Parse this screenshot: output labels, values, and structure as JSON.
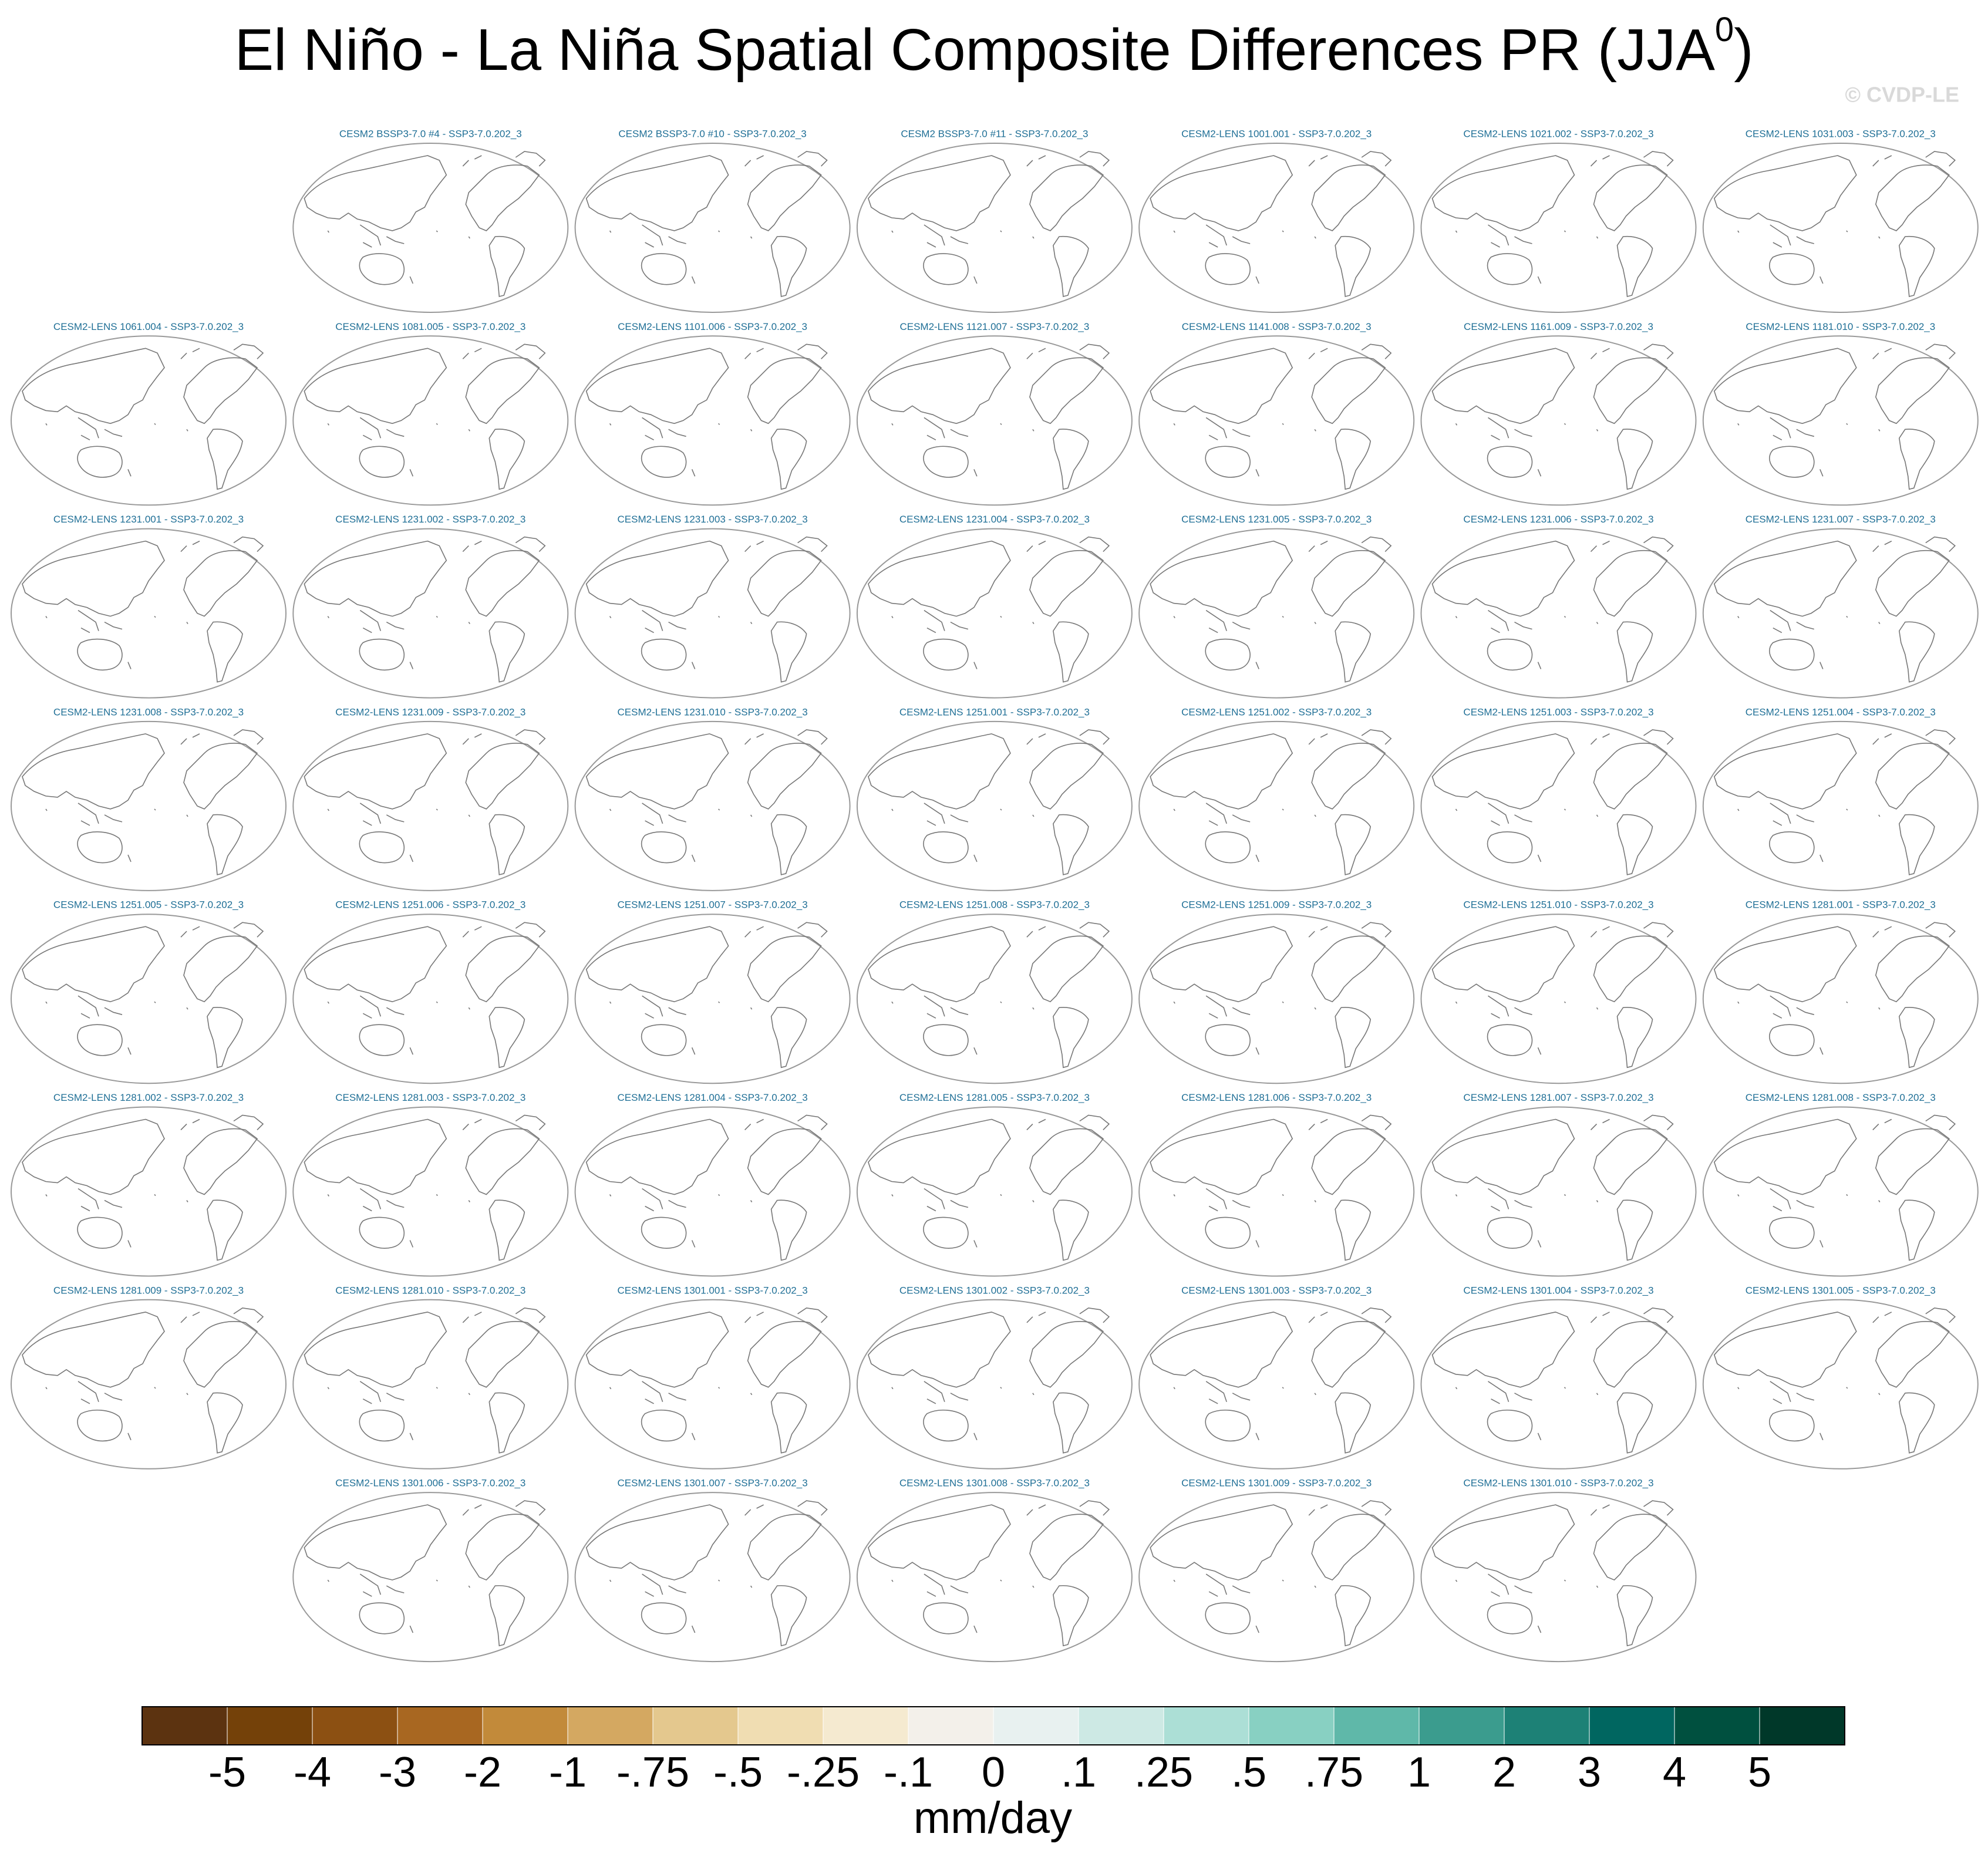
{
  "title": "El Niño - La Niña Spatial Composite Differences PR (JJA",
  "title_superscript": "0",
  "title_end": ")",
  "watermark": "© CVDP-LE",
  "panels": [
    [
      "CESM2 BSSP3-7.0 #4 - SSP3-7.0.202_3",
      "CESM2 BSSP3-7.0 #10 - SSP3-7.0.202_3",
      "CESM2 BSSP3-7.0 #11 - SSP3-7.0.202_3",
      "CESM2-LENS 1001.001 - SSP3-7.0.202_3",
      "CESM2-LENS 1021.002 - SSP3-7.0.202_3",
      "CESM2-LENS 1031.003 - SSP3-7.0.202_3"
    ],
    [
      "CESM2-LENS 1061.004 - SSP3-7.0.202_3",
      "CESM2-LENS 1081.005 - SSP3-7.0.202_3",
      "CESM2-LENS 1101.006 - SSP3-7.0.202_3",
      "CESM2-LENS 1121.007 - SSP3-7.0.202_3",
      "CESM2-LENS 1141.008 - SSP3-7.0.202_3",
      "CESM2-LENS 1161.009 - SSP3-7.0.202_3",
      "CESM2-LENS 1181.010 - SSP3-7.0.202_3"
    ],
    [
      "CESM2-LENS 1231.001 - SSP3-7.0.202_3",
      "CESM2-LENS 1231.002 - SSP3-7.0.202_3",
      "CESM2-LENS 1231.003 - SSP3-7.0.202_3",
      "CESM2-LENS 1231.004 - SSP3-7.0.202_3",
      "CESM2-LENS 1231.005 - SSP3-7.0.202_3",
      "CESM2-LENS 1231.006 - SSP3-7.0.202_3",
      "CESM2-LENS 1231.007 - SSP3-7.0.202_3"
    ],
    [
      "CESM2-LENS 1231.008 - SSP3-7.0.202_3",
      "CESM2-LENS 1231.009 - SSP3-7.0.202_3",
      "CESM2-LENS 1231.010 - SSP3-7.0.202_3",
      "CESM2-LENS 1251.001 - SSP3-7.0.202_3",
      "CESM2-LENS 1251.002 - SSP3-7.0.202_3",
      "CESM2-LENS 1251.003 - SSP3-7.0.202_3",
      "CESM2-LENS 1251.004 - SSP3-7.0.202_3"
    ],
    [
      "CESM2-LENS 1251.005 - SSP3-7.0.202_3",
      "CESM2-LENS 1251.006 - SSP3-7.0.202_3",
      "CESM2-LENS 1251.007 - SSP3-7.0.202_3",
      "CESM2-LENS 1251.008 - SSP3-7.0.202_3",
      "CESM2-LENS 1251.009 - SSP3-7.0.202_3",
      "CESM2-LENS 1251.010 - SSP3-7.0.202_3",
      "CESM2-LENS 1281.001 - SSP3-7.0.202_3"
    ],
    [
      "CESM2-LENS 1281.002 - SSP3-7.0.202_3",
      "CESM2-LENS 1281.003 - SSP3-7.0.202_3",
      "CESM2-LENS 1281.004 - SSP3-7.0.202_3",
      "CESM2-LENS 1281.005 - SSP3-7.0.202_3",
      "CESM2-LENS 1281.006 - SSP3-7.0.202_3",
      "CESM2-LENS 1281.007 - SSP3-7.0.202_3",
      "CESM2-LENS 1281.008 - SSP3-7.0.202_3"
    ],
    [
      "CESM2-LENS 1281.009 - SSP3-7.0.202_3",
      "CESM2-LENS 1281.010 - SSP3-7.0.202_3",
      "CESM2-LENS 1301.001 - SSP3-7.0.202_3",
      "CESM2-LENS 1301.002 - SSP3-7.0.202_3",
      "CESM2-LENS 1301.003 - SSP3-7.0.202_3",
      "CESM2-LENS 1301.004 - SSP3-7.0.202_3",
      "CESM2-LENS 1301.005 - SSP3-7.0.202_3"
    ],
    [
      "CESM2-LENS 1301.006 - SSP3-7.0.202_3",
      "CESM2-LENS 1301.007 - SSP3-7.0.202_3",
      "CESM2-LENS 1301.008 - SSP3-7.0.202_3",
      "CESM2-LENS 1301.009 - SSP3-7.0.202_3",
      "CESM2-LENS 1301.010 - SSP3-7.0.202_3"
    ]
  ],
  "colorbar": {
    "colors": [
      "#5c3310",
      "#744109",
      "#8c5012",
      "#a86721",
      "#c28a3a",
      "#d4a861",
      "#e4c88e",
      "#f0ddb2",
      "#f5ead0",
      "#f3f0ea",
      "#e8f1f0",
      "#cde9e4",
      "#acdfd6",
      "#88d0c2",
      "#5fb8a9",
      "#3b9c8e",
      "#1d8176",
      "#006660",
      "#00503f",
      "#003829"
    ],
    "labels": [
      "-5",
      "-4",
      "-3",
      "-2",
      "-1",
      "-.75",
      "-.5",
      "-.25",
      "-.1",
      "0",
      ".1",
      ".25",
      ".5",
      ".75",
      "1",
      "2",
      "3",
      "4",
      "5"
    ],
    "unit": "mm/day"
  }
}
